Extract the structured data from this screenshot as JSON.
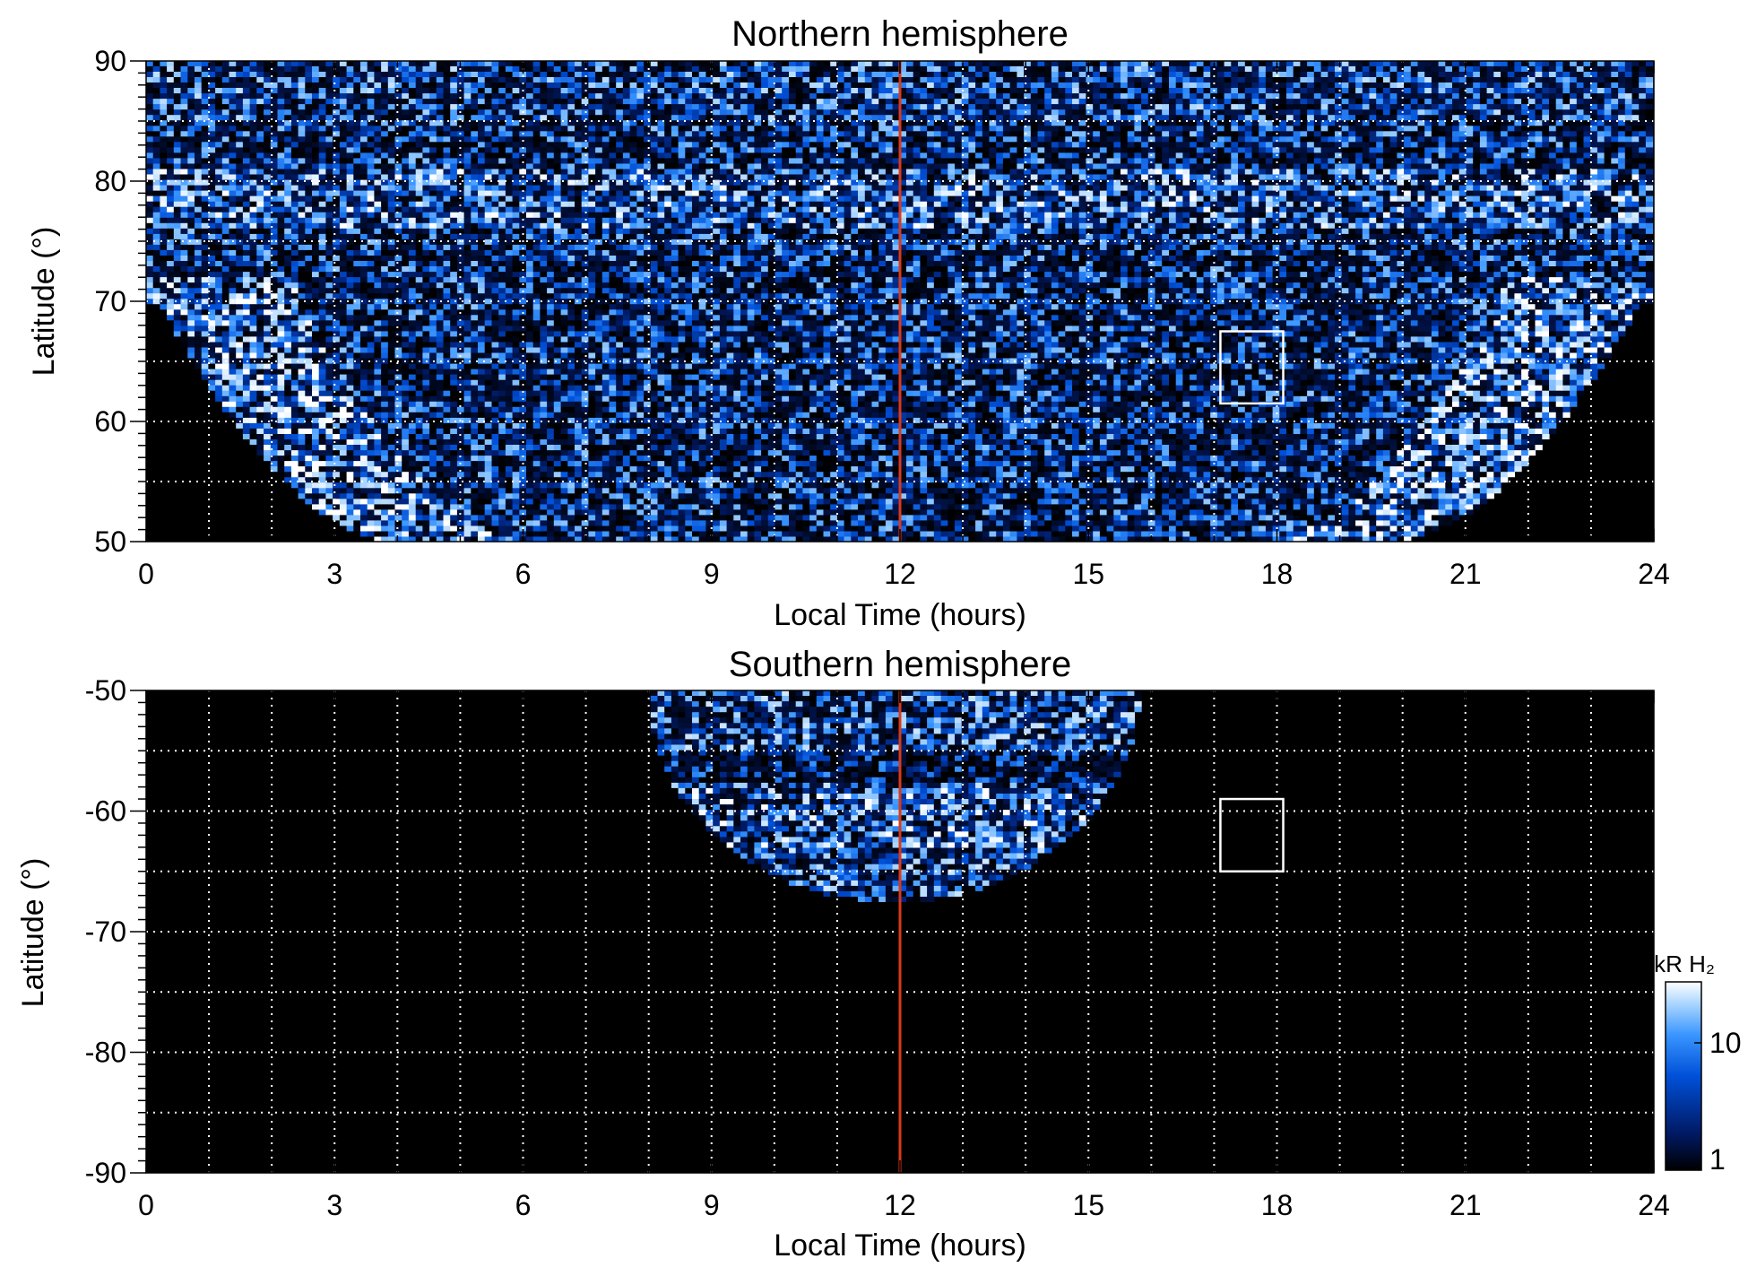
{
  "chart_data": [
    {
      "type": "heatmap",
      "title": "Northern hemisphere",
      "xlabel": "Local Time (hours)",
      "ylabel": "Latitude (°)",
      "xlim": [
        0,
        24
      ],
      "ylim": [
        50,
        90
      ],
      "xticks": [
        "0",
        "3",
        "6",
        "9",
        "12",
        "15",
        "18",
        "21",
        "24"
      ],
      "yticks": [
        "50",
        "60",
        "70",
        "80",
        "90"
      ],
      "grid": true,
      "vline_x": 12,
      "vline_color": "#d93a1a",
      "box": {
        "x0": 17.1,
        "x1": 18.1,
        "y0": 61.5,
        "y1": 67.5
      },
      "coverage": "equatorward boundary: lat 50 at LT 4 and 19.8, lat 70 at LT 0.2 and 23.8; dense coverage at all latitudes 70-90",
      "auroral_band": "bright emission band near lat 77-80 on dawn side and along boundary, ~3 kR background speckle"
    },
    {
      "type": "heatmap",
      "title": "Southern hemisphere",
      "xlabel": "Local Time (hours)",
      "ylabel": "Latitude (°)",
      "xlim": [
        0,
        24
      ],
      "ylim": [
        -90,
        -50
      ],
      "xticks": [
        "0",
        "3",
        "6",
        "9",
        "12",
        "15",
        "18",
        "21",
        "24"
      ],
      "yticks": [
        "-50",
        "-60",
        "-70",
        "-80",
        "-90"
      ],
      "grid": true,
      "vline_x": 12,
      "vline_color": "#d93a1a",
      "box": {
        "x0": 17.1,
        "x1": 18.1,
        "y0": -65,
        "y1": -59
      },
      "coverage": "bowl-shaped region from LT 8 to 15.8 at lat -50, reaching lat -67.5 at LT 12",
      "auroral_band": "dark gap near lat -56, bright band near lat -58 to -62"
    }
  ],
  "colorbar": {
    "label": "kR H₂",
    "ticks": [
      "1",
      "10"
    ],
    "range": [
      1,
      20
    ],
    "scale": "log",
    "colors": [
      "#000000",
      "#001a66",
      "#0050d8",
      "#3a96ff",
      "#a8d4ff",
      "#ffffff"
    ]
  }
}
